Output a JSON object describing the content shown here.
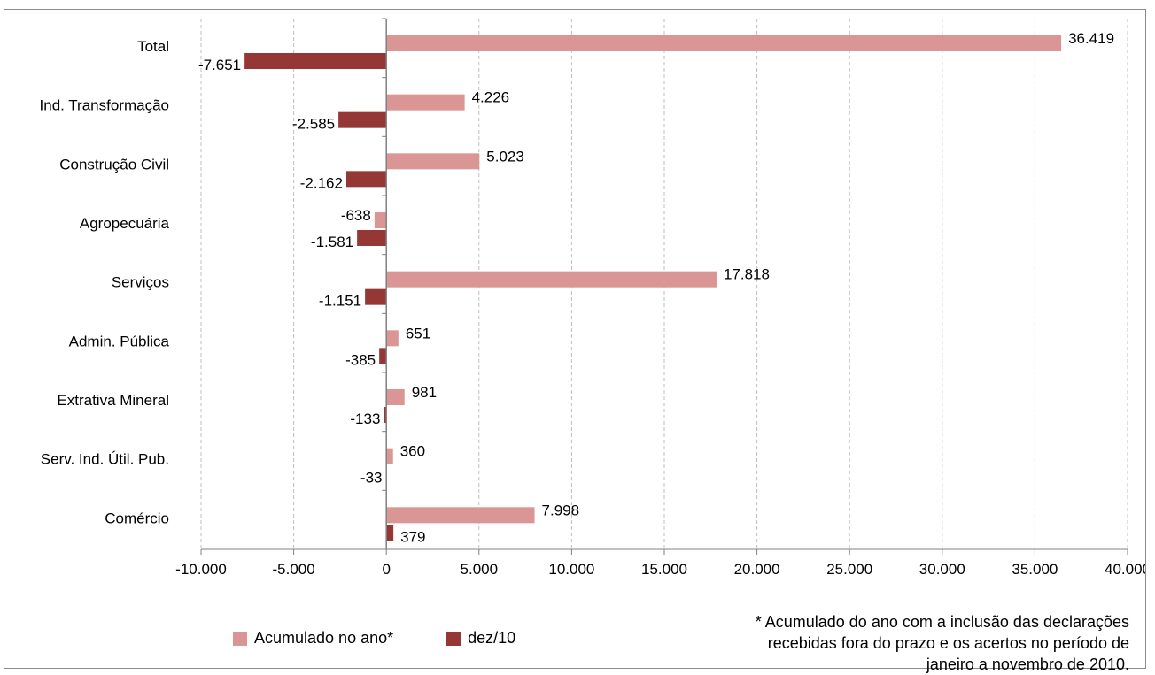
{
  "chart_data": {
    "type": "bar",
    "orientation": "horizontal",
    "categories": [
      "Total",
      "Ind. Transformação",
      "Construção Civil",
      "Agropecuária",
      "Serviços",
      "Admin. Pública",
      "Extrativa Mineral",
      "Serv. Ind. Útil. Pub.",
      "Comércio"
    ],
    "series": [
      {
        "name": "Acumulado no ano*",
        "color": "#d99694",
        "values": [
          36419,
          4226,
          5023,
          -638,
          17818,
          651,
          981,
          360,
          7998
        ],
        "labels": [
          "36.419",
          "4.226",
          "5.023",
          "-638",
          "17.818",
          "651",
          "981",
          "360",
          "7.998"
        ]
      },
      {
        "name": "dez/10",
        "color": "#953735",
        "values": [
          -7651,
          -2585,
          -2162,
          -1581,
          -1151,
          -385,
          -133,
          -33,
          379
        ],
        "labels": [
          "-7.651",
          "-2.585",
          "-2.162",
          "-1.581",
          "-1.151",
          "-385",
          "-133",
          "-33",
          "379"
        ]
      }
    ],
    "xlim": [
      -10000,
      40000
    ],
    "xticks": [
      -10000,
      -5000,
      0,
      5000,
      10000,
      15000,
      20000,
      25000,
      30000,
      35000,
      40000
    ],
    "xtick_labels": [
      "-10.000",
      "-5.000",
      "0",
      "5.000",
      "10.000",
      "15.000",
      "20.000",
      "25.000",
      "30.000",
      "35.000",
      "40.000"
    ],
    "grid": "vertical-dashed",
    "legend_position": "bottom-left",
    "footnote": [
      "* Acumulado do ano com a inclusão das declarações",
      "recebidas fora do prazo e os acertos no período de",
      "janeiro a novembro de 2010."
    ]
  }
}
